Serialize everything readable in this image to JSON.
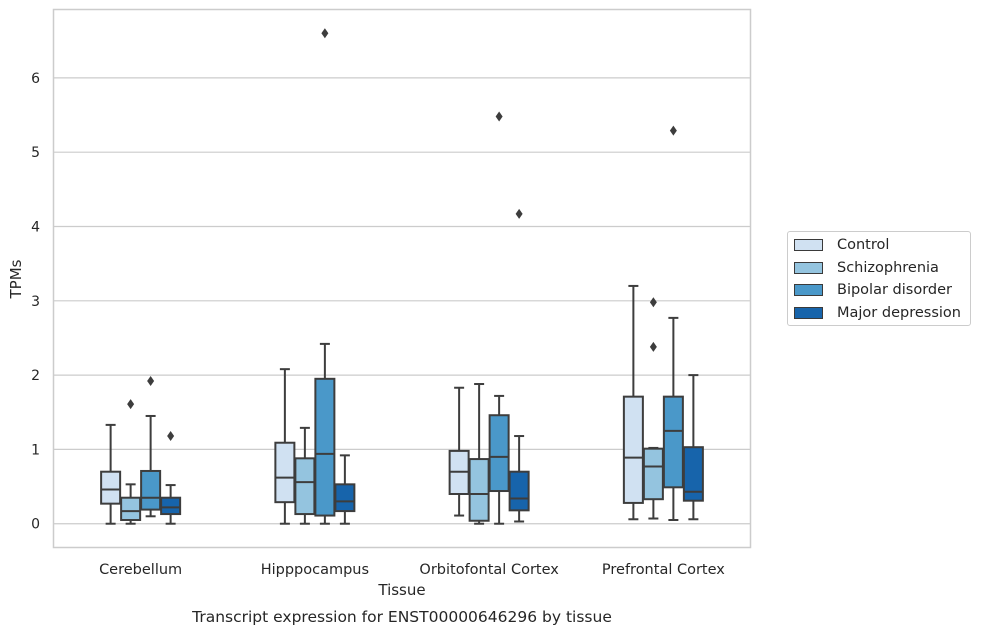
{
  "chart_data": {
    "type": "box",
    "title": "Transcript expression for ENST00000646296 by tissue",
    "xlabel": "Tissue",
    "ylabel": "TPMs",
    "ylim": [
      -0.32,
      6.92
    ],
    "yticks": [
      0,
      1,
      2,
      3,
      4,
      5,
      6
    ],
    "grid": "horizontal",
    "legend_position": "right",
    "categories": [
      "Cerebellum",
      "Hipppocampus",
      "Orbitofontal Cortex",
      "Prefrontal Cortex"
    ],
    "series": [
      {
        "name": "Control",
        "color": "#d0e1f2",
        "boxes": [
          {
            "min": 0.0,
            "q1": 0.27,
            "median": 0.46,
            "q3": 0.7,
            "max": 1.33,
            "outliers": []
          },
          {
            "min": 0.0,
            "q1": 0.29,
            "median": 0.62,
            "q3": 1.09,
            "max": 2.08,
            "outliers": []
          },
          {
            "min": 0.11,
            "q1": 0.4,
            "median": 0.7,
            "q3": 0.98,
            "max": 1.83,
            "outliers": []
          },
          {
            "min": 0.06,
            "q1": 0.28,
            "median": 0.89,
            "q3": 1.71,
            "max": 3.2,
            "outliers": []
          }
        ]
      },
      {
        "name": "Schizophrenia",
        "color": "#94c4df",
        "boxes": [
          {
            "min": 0.0,
            "q1": 0.05,
            "median": 0.17,
            "q3": 0.35,
            "max": 0.53,
            "outliers": [
              1.61
            ]
          },
          {
            "min": 0.0,
            "q1": 0.13,
            "median": 0.56,
            "q3": 0.88,
            "max": 1.29,
            "outliers": []
          },
          {
            "min": 0.0,
            "q1": 0.04,
            "median": 0.4,
            "q3": 0.87,
            "max": 1.88,
            "outliers": []
          },
          {
            "min": 0.07,
            "q1": 0.33,
            "median": 0.77,
            "q3": 1.01,
            "max": 1.02,
            "outliers": [
              2.38,
              2.98
            ]
          }
        ]
      },
      {
        "name": "Bipolar disorder",
        "color": "#4a98c9",
        "boxes": [
          {
            "min": 0.1,
            "q1": 0.19,
            "median": 0.35,
            "q3": 0.71,
            "max": 1.45,
            "outliers": [
              1.92
            ]
          },
          {
            "min": 0.0,
            "q1": 0.11,
            "median": 0.94,
            "q3": 1.95,
            "max": 2.42,
            "outliers": [
              6.6
            ]
          },
          {
            "min": 0.0,
            "q1": 0.44,
            "median": 0.9,
            "q3": 1.46,
            "max": 1.72,
            "outliers": [
              5.48
            ]
          },
          {
            "min": 0.05,
            "q1": 0.49,
            "median": 1.25,
            "q3": 1.71,
            "max": 2.77,
            "outliers": [
              5.29
            ]
          }
        ]
      },
      {
        "name": "Major depression",
        "color": "#1764ab",
        "boxes": [
          {
            "min": 0.0,
            "q1": 0.13,
            "median": 0.22,
            "q3": 0.35,
            "max": 0.52,
            "outliers": [
              1.18
            ]
          },
          {
            "min": 0.0,
            "q1": 0.17,
            "median": 0.3,
            "q3": 0.53,
            "max": 0.92,
            "outliers": []
          },
          {
            "min": 0.03,
            "q1": 0.18,
            "median": 0.34,
            "q3": 0.7,
            "max": 1.18,
            "outliers": [
              4.17
            ]
          },
          {
            "min": 0.06,
            "q1": 0.31,
            "median": 0.43,
            "q3": 1.03,
            "max": 2.0,
            "outliers": []
          }
        ]
      }
    ]
  }
}
